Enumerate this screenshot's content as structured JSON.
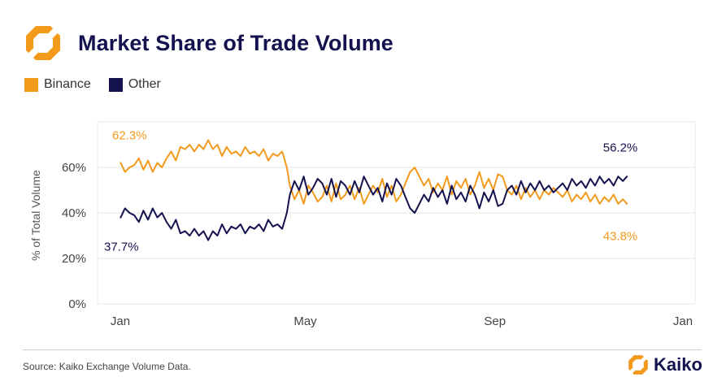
{
  "header": {
    "title": "Market Share of Trade Volume"
  },
  "colors": {
    "binance": "#f39a1d",
    "other": "#14114f",
    "grid": "#e6e6e6",
    "axis_text": "#444444"
  },
  "footer": {
    "source": "Source: Kaiko Exchange Volume Data.",
    "brand": "Kaiko"
  },
  "chart_data": {
    "type": "line",
    "title": "Market Share of Trade Volume",
    "xlabel": "",
    "ylabel": "% of Total Volume",
    "ylim": [
      0,
      80
    ],
    "yticks": [
      0,
      20,
      40,
      60
    ],
    "ytick_labels": [
      "0%",
      "20%",
      "40%",
      "60%"
    ],
    "x_tick_labels": [
      "Jan",
      "May",
      "Sep",
      "Jan"
    ],
    "xlim": [
      0,
      365
    ],
    "x_tick_days": [
      0,
      120,
      243,
      365
    ],
    "grid": true,
    "legend_position": "top-left",
    "series": [
      {
        "name": "Binance",
        "color_key": "binance",
        "points": [
          [
            0,
            62.3
          ],
          [
            3,
            58
          ],
          [
            6,
            60
          ],
          [
            9,
            61
          ],
          [
            12,
            64
          ],
          [
            15,
            59
          ],
          [
            18,
            63
          ],
          [
            21,
            58
          ],
          [
            24,
            62
          ],
          [
            27,
            60
          ],
          [
            30,
            64
          ],
          [
            33,
            67
          ],
          [
            36,
            63
          ],
          [
            39,
            69
          ],
          [
            42,
            68
          ],
          [
            45,
            70
          ],
          [
            48,
            67
          ],
          [
            51,
            70
          ],
          [
            54,
            68
          ],
          [
            57,
            72
          ],
          [
            60,
            68
          ],
          [
            63,
            70
          ],
          [
            66,
            65
          ],
          [
            69,
            69
          ],
          [
            72,
            66
          ],
          [
            75,
            67
          ],
          [
            78,
            65
          ],
          [
            81,
            69
          ],
          [
            84,
            66
          ],
          [
            87,
            67
          ],
          [
            90,
            65
          ],
          [
            93,
            68
          ],
          [
            96,
            63
          ],
          [
            99,
            66
          ],
          [
            102,
            65
          ],
          [
            105,
            67
          ],
          [
            108,
            60
          ],
          [
            110,
            52
          ],
          [
            113,
            46
          ],
          [
            116,
            50
          ],
          [
            119,
            44
          ],
          [
            122,
            52
          ],
          [
            125,
            49
          ],
          [
            128,
            45
          ],
          [
            131,
            47
          ],
          [
            134,
            52
          ],
          [
            137,
            45
          ],
          [
            140,
            53
          ],
          [
            143,
            46
          ],
          [
            146,
            48
          ],
          [
            149,
            52
          ],
          [
            152,
            46
          ],
          [
            155,
            51
          ],
          [
            158,
            44
          ],
          [
            161,
            48
          ],
          [
            164,
            52
          ],
          [
            167,
            49
          ],
          [
            170,
            55
          ],
          [
            173,
            47
          ],
          [
            176,
            52
          ],
          [
            179,
            45
          ],
          [
            182,
            48
          ],
          [
            185,
            53
          ],
          [
            188,
            58
          ],
          [
            191,
            60
          ],
          [
            194,
            56
          ],
          [
            197,
            52
          ],
          [
            200,
            55
          ],
          [
            203,
            49
          ],
          [
            206,
            53
          ],
          [
            209,
            50
          ],
          [
            212,
            56
          ],
          [
            215,
            48
          ],
          [
            218,
            54
          ],
          [
            221,
            51
          ],
          [
            224,
            55
          ],
          [
            227,
            48
          ],
          [
            230,
            52
          ],
          [
            233,
            58
          ],
          [
            236,
            51
          ],
          [
            239,
            55
          ],
          [
            242,
            50
          ],
          [
            245,
            57
          ],
          [
            248,
            56
          ],
          [
            251,
            50
          ],
          [
            254,
            48
          ],
          [
            257,
            52
          ],
          [
            260,
            46
          ],
          [
            263,
            51
          ],
          [
            266,
            47
          ],
          [
            269,
            50
          ],
          [
            272,
            46
          ],
          [
            275,
            50
          ],
          [
            278,
            48
          ],
          [
            281,
            51
          ],
          [
            284,
            49
          ],
          [
            287,
            47
          ],
          [
            290,
            50
          ],
          [
            293,
            45
          ],
          [
            296,
            48
          ],
          [
            299,
            46
          ],
          [
            302,
            49
          ],
          [
            305,
            45
          ],
          [
            308,
            48
          ],
          [
            311,
            44
          ],
          [
            314,
            47
          ],
          [
            317,
            45
          ],
          [
            320,
            48
          ],
          [
            323,
            44
          ],
          [
            326,
            46
          ],
          [
            329,
            43.8
          ]
        ]
      },
      {
        "name": "Other",
        "color_key": "other",
        "points": [
          [
            0,
            37.7
          ],
          [
            3,
            42
          ],
          [
            6,
            40
          ],
          [
            9,
            39
          ],
          [
            12,
            36
          ],
          [
            15,
            41
          ],
          [
            18,
            37
          ],
          [
            21,
            42
          ],
          [
            24,
            38
          ],
          [
            27,
            40
          ],
          [
            30,
            36
          ],
          [
            33,
            33
          ],
          [
            36,
            37
          ],
          [
            39,
            31
          ],
          [
            42,
            32
          ],
          [
            45,
            30
          ],
          [
            48,
            33
          ],
          [
            51,
            30
          ],
          [
            54,
            32
          ],
          [
            57,
            28
          ],
          [
            60,
            32
          ],
          [
            63,
            30
          ],
          [
            66,
            35
          ],
          [
            69,
            31
          ],
          [
            72,
            34
          ],
          [
            75,
            33
          ],
          [
            78,
            35
          ],
          [
            81,
            31
          ],
          [
            84,
            34
          ],
          [
            87,
            33
          ],
          [
            90,
            35
          ],
          [
            93,
            32
          ],
          [
            96,
            37
          ],
          [
            99,
            34
          ],
          [
            102,
            35
          ],
          [
            105,
            33
          ],
          [
            108,
            40
          ],
          [
            110,
            48
          ],
          [
            113,
            54
          ],
          [
            116,
            50
          ],
          [
            119,
            56
          ],
          [
            122,
            48
          ],
          [
            125,
            51
          ],
          [
            128,
            55
          ],
          [
            131,
            53
          ],
          [
            134,
            48
          ],
          [
            137,
            55
          ],
          [
            140,
            47
          ],
          [
            143,
            54
          ],
          [
            146,
            52
          ],
          [
            149,
            48
          ],
          [
            152,
            54
          ],
          [
            155,
            49
          ],
          [
            158,
            56
          ],
          [
            161,
            52
          ],
          [
            164,
            48
          ],
          [
            167,
            51
          ],
          [
            170,
            45
          ],
          [
            173,
            53
          ],
          [
            176,
            48
          ],
          [
            179,
            55
          ],
          [
            182,
            52
          ],
          [
            185,
            47
          ],
          [
            188,
            42
          ],
          [
            191,
            40
          ],
          [
            194,
            44
          ],
          [
            197,
            48
          ],
          [
            200,
            45
          ],
          [
            203,
            51
          ],
          [
            206,
            47
          ],
          [
            209,
            50
          ],
          [
            212,
            44
          ],
          [
            215,
            52
          ],
          [
            218,
            46
          ],
          [
            221,
            49
          ],
          [
            224,
            45
          ],
          [
            227,
            52
          ],
          [
            230,
            48
          ],
          [
            233,
            42
          ],
          [
            236,
            49
          ],
          [
            239,
            45
          ],
          [
            242,
            50
          ],
          [
            245,
            43
          ],
          [
            248,
            44
          ],
          [
            251,
            50
          ],
          [
            254,
            52
          ],
          [
            257,
            48
          ],
          [
            260,
            54
          ],
          [
            263,
            49
          ],
          [
            266,
            53
          ],
          [
            269,
            50
          ],
          [
            272,
            54
          ],
          [
            275,
            50
          ],
          [
            278,
            52
          ],
          [
            281,
            49
          ],
          [
            284,
            51
          ],
          [
            287,
            53
          ],
          [
            290,
            50
          ],
          [
            293,
            55
          ],
          [
            296,
            52
          ],
          [
            299,
            54
          ],
          [
            302,
            51
          ],
          [
            305,
            55
          ],
          [
            308,
            52
          ],
          [
            311,
            56
          ],
          [
            314,
            53
          ],
          [
            317,
            55
          ],
          [
            320,
            52
          ],
          [
            323,
            56
          ],
          [
            326,
            54
          ],
          [
            329,
            56.2
          ]
        ]
      }
    ],
    "annotations": [
      {
        "text": "62.3%",
        "series": "Binance",
        "at": "start"
      },
      {
        "text": "37.7%",
        "series": "Other",
        "at": "start"
      },
      {
        "text": "56.2%",
        "series": "Other",
        "at": "end"
      },
      {
        "text": "43.8%",
        "series": "Binance",
        "at": "end"
      }
    ]
  }
}
